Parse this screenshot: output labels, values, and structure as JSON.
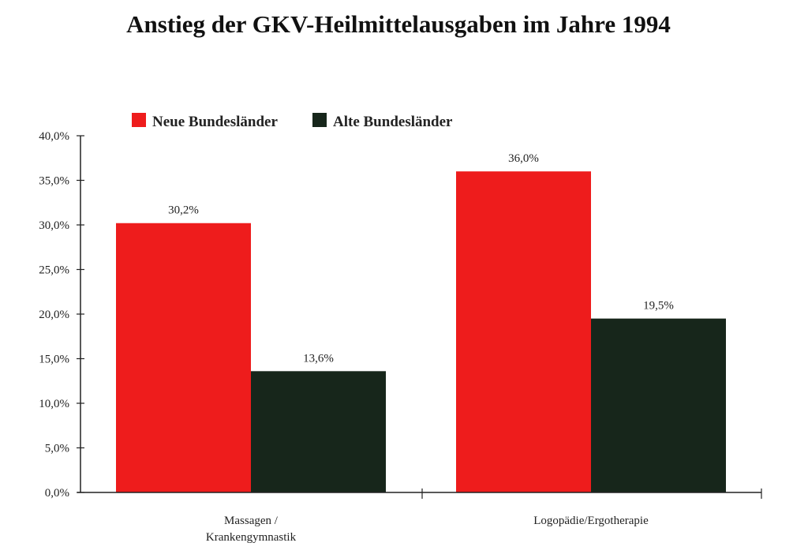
{
  "chart_data": {
    "type": "bar",
    "title": "Anstieg der GKV-Heilmittelausgaben im Jahre 1994",
    "xlabel": "",
    "ylabel": "",
    "ylim": [
      0,
      40
    ],
    "yticks": [
      "0,0%",
      "5,0%",
      "10,0%",
      "15,0%",
      "20,0%",
      "25,0%",
      "30,0%",
      "35,0%",
      "40,0%"
    ],
    "ytick_values": [
      0,
      5,
      10,
      15,
      20,
      25,
      30,
      35,
      40
    ],
    "categories": [
      [
        "Massagen /",
        "Krankengymnastik"
      ],
      [
        "Logopädie/Ergotherapie"
      ]
    ],
    "legend_position": "top",
    "grid": false,
    "series": [
      {
        "name": "Neue Bundesländer",
        "color": "#ee1c1c",
        "values": [
          30.2,
          36.0
        ],
        "labels": [
          "30,2%",
          "36,0%"
        ]
      },
      {
        "name": "Alte Bundesländer",
        "color": "#17261b",
        "values": [
          13.6,
          19.5
        ],
        "labels": [
          "13,6%",
          "19,5%"
        ]
      }
    ]
  }
}
